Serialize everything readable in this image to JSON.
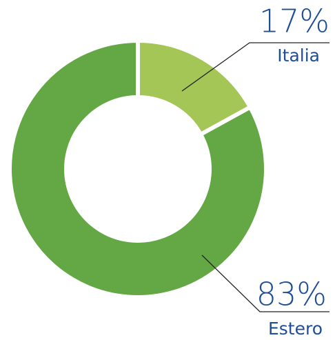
{
  "chart_data": {
    "type": "donut",
    "categories": [
      "Italia",
      "Estero"
    ],
    "values": [
      17,
      83
    ],
    "value_labels": [
      "17%",
      "83%"
    ],
    "colors": [
      "#a3c656",
      "#63a844"
    ]
  }
}
